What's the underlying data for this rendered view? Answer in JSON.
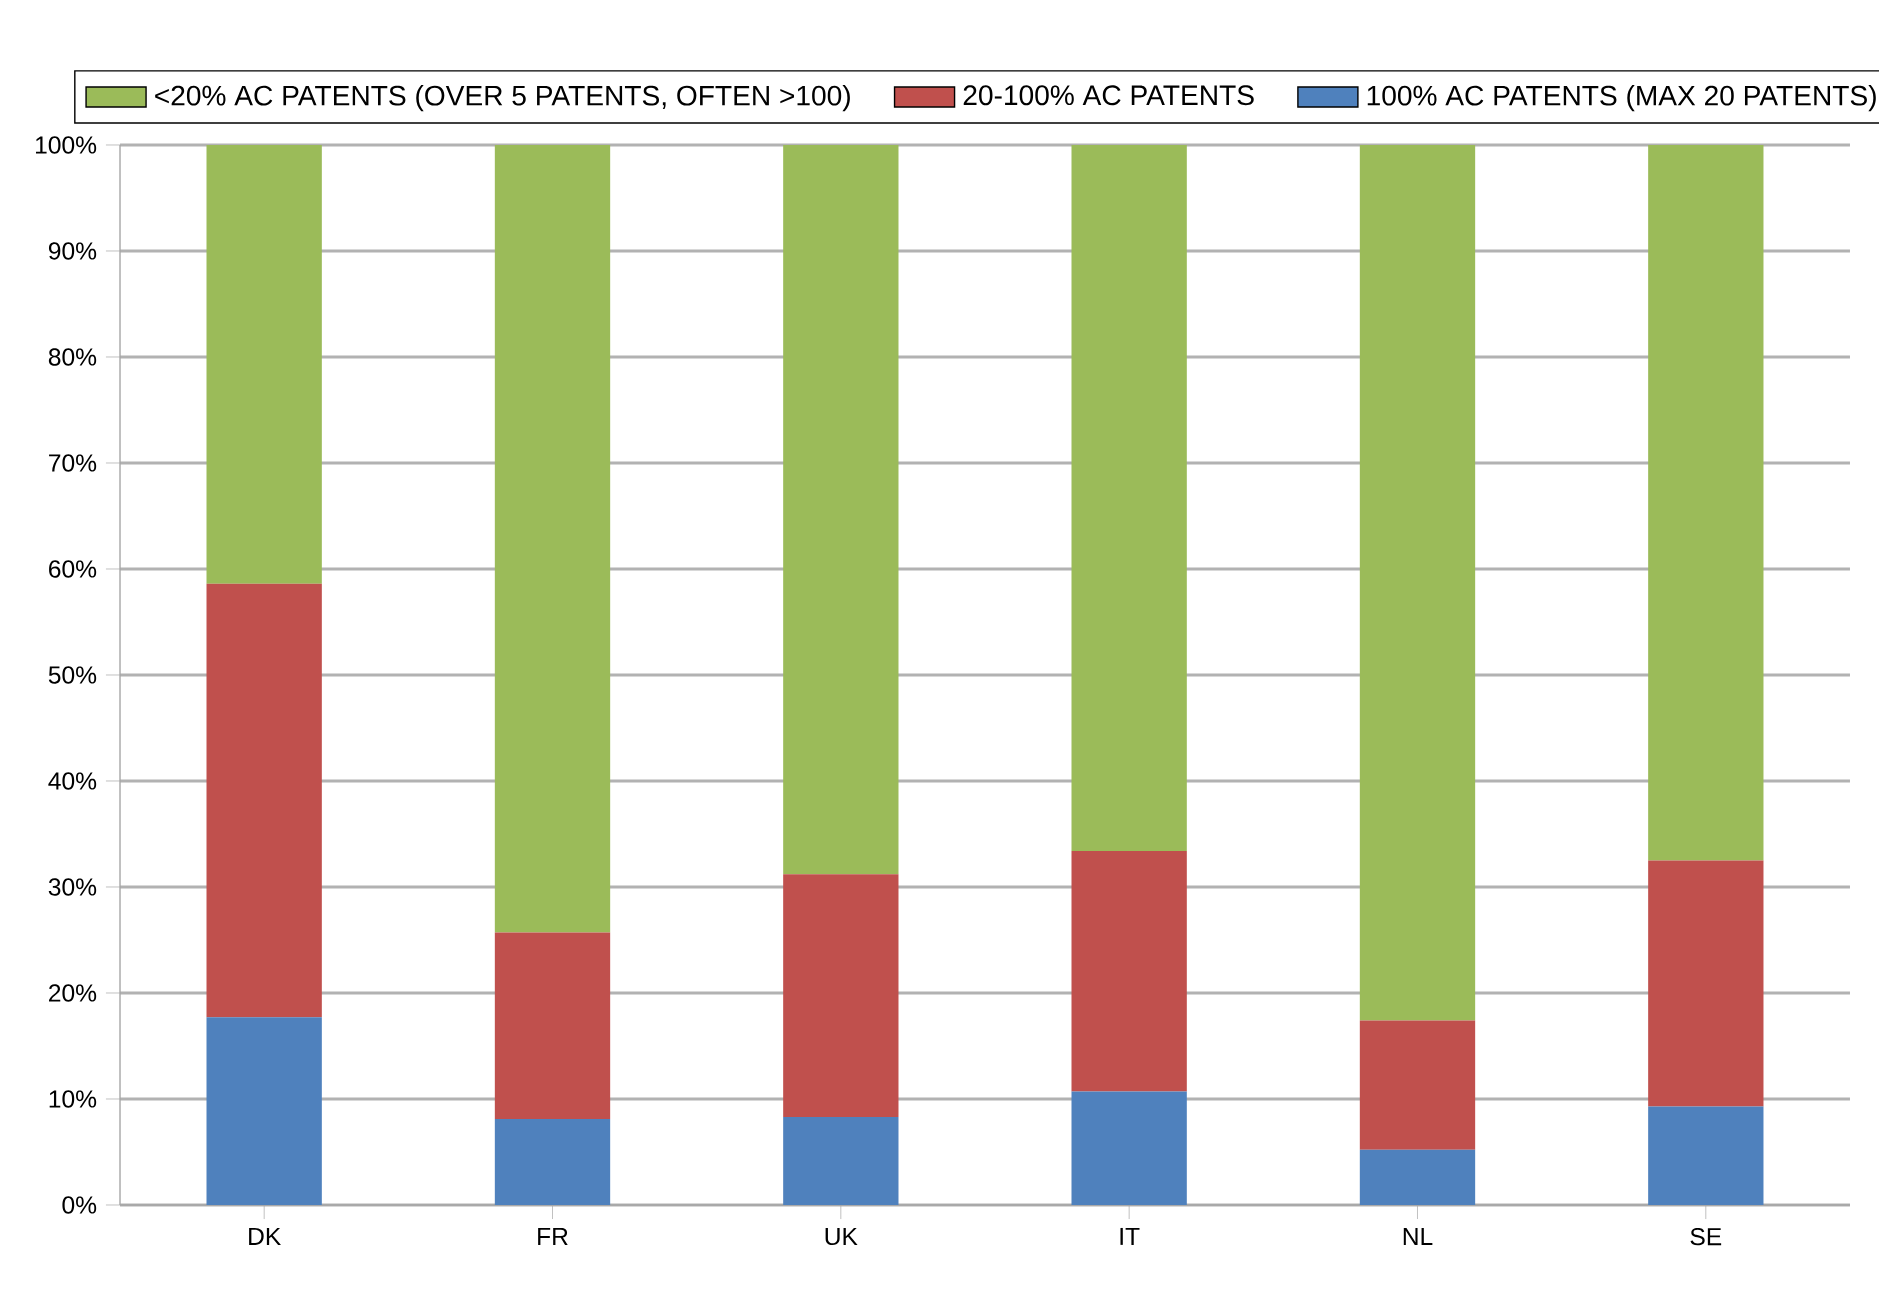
{
  "chart_data": {
    "type": "bar",
    "stacked": true,
    "categories": [
      "DK",
      "FR",
      "UK",
      "IT",
      "NL",
      "SE"
    ],
    "series": [
      {
        "name": "100% AC PATENTS  (MAX 20 PATENTS)",
        "color": "#4f81bd",
        "values": [
          17.7,
          8.1,
          8.3,
          10.7,
          5.2,
          9.3
        ]
      },
      {
        "name": "20-100% AC PATENTS",
        "color": "#c0504d",
        "values": [
          40.9,
          17.6,
          22.9,
          22.7,
          12.2,
          23.2
        ]
      },
      {
        "name": "<20% AC PATENTS (OVER  5 PATENTS,  OFTEN >100)",
        "color": "#9bbb59",
        "values": [
          41.4,
          74.3,
          68.8,
          66.6,
          82.6,
          67.5
        ]
      }
    ],
    "ylim": [
      0,
      100
    ],
    "yticks": [
      {
        "value": 0,
        "label": "0%"
      },
      {
        "value": 10,
        "label": "10%"
      },
      {
        "value": 20,
        "label": "20%"
      },
      {
        "value": 30,
        "label": "30%"
      },
      {
        "value": 40,
        "label": "40%"
      },
      {
        "value": 50,
        "label": "50%"
      },
      {
        "value": 60,
        "label": "60%"
      },
      {
        "value": 70,
        "label": "70%"
      },
      {
        "value": 80,
        "label": "80%"
      },
      {
        "value": 90,
        "label": "90%"
      },
      {
        "value": 100,
        "label": "100%"
      }
    ],
    "grid": "y",
    "legend": "top"
  }
}
